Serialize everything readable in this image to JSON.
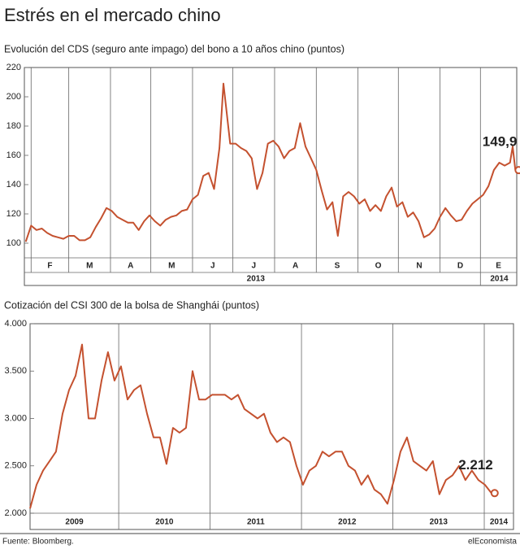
{
  "title": "Estrés en el mercado chino",
  "source": "Fuente: Bloomberg.",
  "brand": "elEconomista",
  "chart_data": [
    {
      "type": "line",
      "title": "Evolución del CDS (seguro ante impago) del bono a 10 años chino (puntos)",
      "x": [
        -4,
        0,
        4,
        8,
        12,
        16,
        20,
        24,
        28,
        32,
        36,
        40,
        44,
        48,
        52,
        56,
        60,
        64,
        68,
        72,
        76,
        80,
        84,
        88,
        92,
        96,
        100,
        104,
        108,
        112,
        116,
        120,
        124,
        128,
        132,
        136,
        140,
        143,
        148,
        152,
        156,
        160,
        164,
        168,
        172,
        176,
        180,
        184,
        188,
        192,
        196,
        200,
        204,
        208,
        212,
        216,
        220,
        224,
        228,
        232,
        236,
        240,
        244,
        248,
        252,
        256,
        260,
        264,
        268,
        272,
        276,
        280,
        284,
        288,
        292,
        296,
        300,
        304,
        308,
        312,
        316,
        320,
        324,
        328,
        332,
        336,
        340,
        344,
        348,
        352,
        356,
        358,
        360
      ],
      "series": [
        {
          "color": "#c4512f",
          "values": [
            101,
            112,
            109,
            110,
            107,
            105,
            104,
            103,
            105,
            105,
            102,
            102,
            104,
            111,
            117,
            124,
            122,
            118,
            116,
            114,
            114,
            109,
            115,
            119,
            115,
            112,
            116,
            118,
            119,
            122,
            123,
            130,
            133,
            146,
            148,
            137,
            165,
            209,
            168,
            168,
            165,
            163,
            158,
            137,
            148,
            168,
            170,
            166,
            158,
            163,
            165,
            182,
            166,
            158,
            150,
            136,
            123,
            128,
            105,
            132,
            135,
            132,
            127,
            130,
            122,
            126,
            122,
            132,
            138,
            125,
            128,
            118,
            121,
            115,
            104,
            106,
            110,
            118,
            124,
            119,
            115,
            116,
            122,
            127,
            130,
            133,
            139,
            150,
            155,
            153,
            155,
            166,
            149.9
          ]
        }
      ],
      "end_label": "149,9",
      "xlim": [
        -5,
        361
      ],
      "xticks": [
        0,
        28,
        59,
        89,
        120,
        150,
        181,
        212,
        243,
        273,
        304,
        334
      ],
      "categories": [
        "F",
        "M",
        "A",
        "M",
        "J",
        "J",
        "A",
        "S",
        "O",
        "N",
        "D",
        "E"
      ],
      "year_labels": [
        {
          "value": 167,
          "label": "2013"
        },
        {
          "value": 348,
          "label": "2014"
        }
      ],
      "ylim": [
        90,
        220
      ],
      "yticks": [
        100,
        120,
        140,
        160,
        180,
        200,
        220
      ]
    },
    {
      "type": "line",
      "title": "Cotización del CSI 300 de la bolsa de Shanghái (puntos)",
      "x": [
        2009.03,
        2009.101,
        2009.172,
        2009.243,
        2009.314,
        2009.386,
        2009.457,
        2009.528,
        2009.599,
        2009.67,
        2009.741,
        2009.812,
        2009.883,
        2009.954,
        2010.025,
        2010.097,
        2010.168,
        2010.239,
        2010.31,
        2010.381,
        2010.452,
        2010.523,
        2010.594,
        2010.665,
        2010.736,
        2010.808,
        2010.879,
        2010.95,
        2011.021,
        2011.092,
        2011.163,
        2011.234,
        2011.305,
        2011.376,
        2011.447,
        2011.519,
        2011.59,
        2011.661,
        2011.732,
        2011.803,
        2011.874,
        2011.945,
        2012.016,
        2012.087,
        2012.158,
        2012.23,
        2012.301,
        2012.372,
        2012.443,
        2012.514,
        2012.585,
        2012.656,
        2012.727,
        2012.798,
        2012.869,
        2012.941,
        2013.012,
        2013.083,
        2013.154,
        2013.225,
        2013.296,
        2013.367,
        2013.438,
        2013.509,
        2013.58,
        2013.652,
        2013.723,
        2013.794,
        2013.865,
        2013.936,
        2014.007,
        2014.078
      ],
      "series": [
        {
          "color": "#c4512f",
          "values": [
            2050,
            2300,
            2450,
            2550,
            2650,
            3050,
            3300,
            3450,
            3780,
            3000,
            3000,
            3400,
            3700,
            3400,
            3550,
            3200,
            3300,
            3350,
            3050,
            2800,
            2800,
            2520,
            2900,
            2850,
            2900,
            3500,
            3200,
            3200,
            3250,
            3250,
            3250,
            3200,
            3250,
            3100,
            3050,
            3000,
            3050,
            2850,
            2750,
            2800,
            2750,
            2500,
            2300,
            2450,
            2500,
            2650,
            2600,
            2650,
            2650,
            2500,
            2450,
            2300,
            2400,
            2250,
            2200,
            2100,
            2350,
            2650,
            2800,
            2550,
            2500,
            2450,
            2550,
            2200,
            2350,
            2400,
            2500,
            2350,
            2450,
            2350,
            2300,
            2212
          ]
        }
      ],
      "end_label": "2.212",
      "xlim": [
        2009.03,
        2014.32
      ],
      "xticks": [
        2010,
        2011,
        2012,
        2013,
        2014
      ],
      "categories": [
        "2009",
        "2010",
        "2011",
        "2012",
        "2013",
        "2014"
      ],
      "ylim": [
        2000,
        4000
      ],
      "yticks": [
        {
          "value": 2000,
          "label": "2.000"
        },
        {
          "value": 2500,
          "label": "2.500"
        },
        {
          "value": 3000,
          "label": "3.000"
        },
        {
          "value": 3500,
          "label": "3.500"
        },
        {
          "value": 4000,
          "label": "4.000"
        }
      ]
    }
  ]
}
